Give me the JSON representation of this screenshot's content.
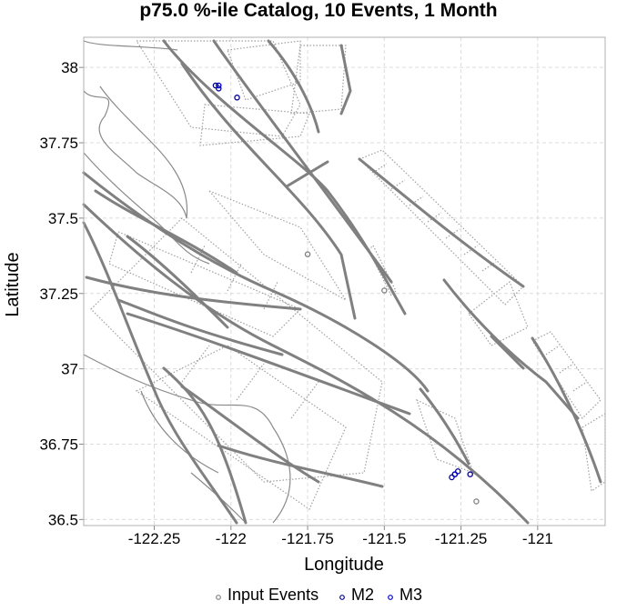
{
  "chart_data": {
    "type": "scatter",
    "title": "p75.0 %-ile Catalog, 10 Events, 1 Month",
    "xlabel": "Longitude",
    "ylabel": "Latitude",
    "xlim": [
      -122.48,
      -120.78
    ],
    "ylim": [
      36.48,
      38.1
    ],
    "grid": true,
    "legend_position": "bottom",
    "x_ticks": [
      -122.25,
      -122,
      -121.75,
      -121.5,
      -121.25,
      -121
    ],
    "x_tick_labels": [
      "-122.25",
      "-122",
      "-121.75",
      "-121.5",
      "-121.25",
      "-121"
    ],
    "y_ticks": [
      36.5,
      36.75,
      37,
      37.25,
      37.5,
      37.75,
      38
    ],
    "y_tick_labels": [
      "36.5",
      "36.75",
      "37",
      "37.25",
      "37.5",
      "37.75",
      "38"
    ],
    "series": [
      {
        "name": "Input Events",
        "color": "#808080",
        "x": [
          -121.5,
          -121.75,
          -121.2
        ],
        "y": [
          37.26,
          37.38,
          36.56
        ]
      },
      {
        "name": "M2",
        "color": "#00008b",
        "x": [
          -122.05,
          -122.04,
          -121.98,
          -121.27,
          -121.28,
          -121.26,
          -121.22
        ],
        "y": [
          37.94,
          37.93,
          37.9,
          36.65,
          36.64,
          36.66,
          36.65
        ]
      },
      {
        "name": "M3",
        "color": "#0000cd",
        "x": [
          -122.04,
          -121.27
        ],
        "y": [
          37.94,
          36.65
        ]
      }
    ]
  },
  "colors": {
    "fault": "#808080",
    "coast": "#8a8a8a",
    "grid": "#dcdcdc"
  }
}
